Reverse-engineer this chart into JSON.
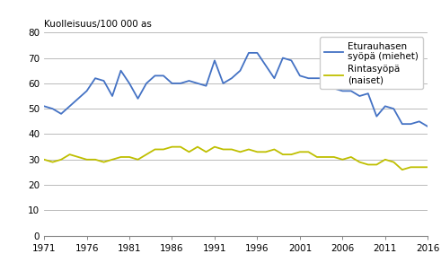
{
  "years": [
    1971,
    1972,
    1973,
    1974,
    1975,
    1976,
    1977,
    1978,
    1979,
    1980,
    1981,
    1982,
    1983,
    1984,
    1985,
    1986,
    1987,
    1988,
    1989,
    1990,
    1991,
    1992,
    1993,
    1994,
    1995,
    1996,
    1997,
    1998,
    1999,
    2000,
    2001,
    2002,
    2003,
    2004,
    2005,
    2006,
    2007,
    2008,
    2009,
    2010,
    2011,
    2012,
    2013,
    2014,
    2015,
    2016
  ],
  "prostate": [
    51,
    50,
    48,
    51,
    54,
    57,
    62,
    61,
    55,
    65,
    60,
    54,
    60,
    63,
    63,
    60,
    60,
    61,
    60,
    59,
    69,
    60,
    62,
    65,
    72,
    72,
    67,
    62,
    70,
    69,
    63,
    62,
    62,
    62,
    58,
    57,
    57,
    55,
    56,
    47,
    51,
    50,
    44,
    44,
    45,
    43
  ],
  "breast": [
    30,
    29,
    30,
    32,
    31,
    30,
    30,
    29,
    30,
    31,
    31,
    30,
    32,
    34,
    34,
    35,
    35,
    33,
    35,
    33,
    35,
    34,
    34,
    33,
    34,
    33,
    33,
    34,
    32,
    32,
    33,
    33,
    31,
    31,
    31,
    30,
    31,
    29,
    28,
    28,
    30,
    29,
    26,
    27,
    27,
    27
  ],
  "prostate_color": "#4472C4",
  "breast_color": "#BFBF00",
  "ylabel": "Kuolleisuus/100 000 as",
  "ylim": [
    0,
    80
  ],
  "yticks": [
    0,
    10,
    20,
    30,
    40,
    50,
    60,
    70,
    80
  ],
  "xlim": [
    1971,
    2016
  ],
  "xticks": [
    1971,
    1976,
    1981,
    1986,
    1991,
    1996,
    2001,
    2006,
    2011,
    2016
  ],
  "legend_prostate": "Eturauhasen\nsyöpä (miehet)",
  "legend_breast": "Rintasyöpä\n(naiset)",
  "background_color": "#ffffff",
  "grid_color": "#b0b0b0",
  "line_width": 1.3
}
